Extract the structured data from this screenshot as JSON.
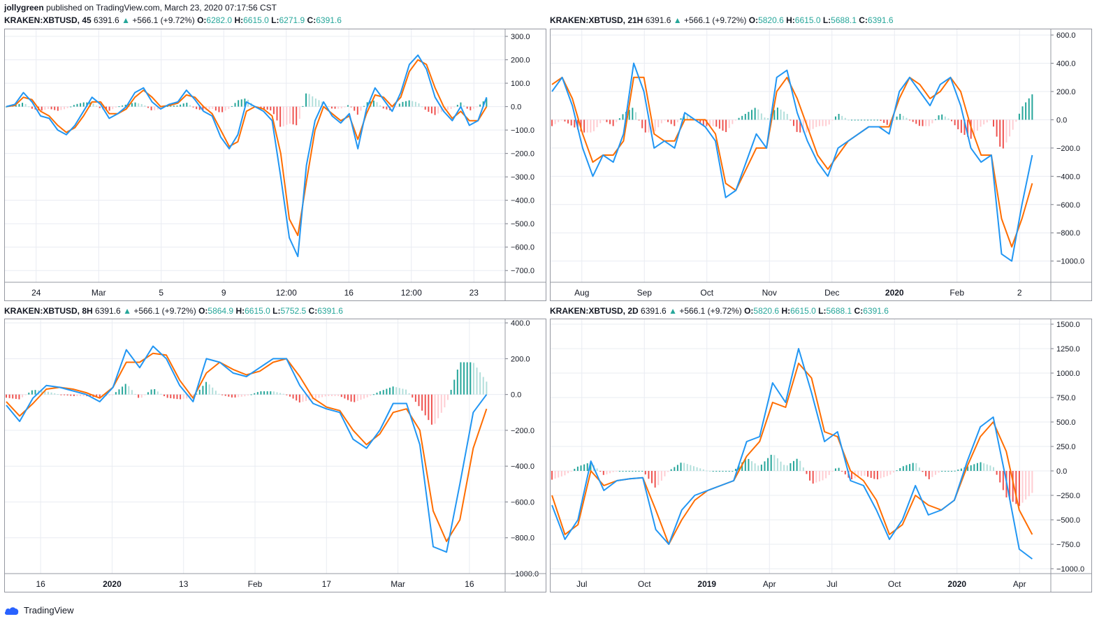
{
  "header": {
    "author": "jollygreen",
    "published": "published on TradingView.com, March 23, 2020 07:17:56 CST"
  },
  "footer": {
    "brand": "TradingView",
    "logo_icon": "tradingview-cloud-icon"
  },
  "colors": {
    "macd": "#2196f3",
    "signal": "#ff6d00",
    "hist_up_strong": "#26a69a",
    "hist_up_weak": "#b2dfdb",
    "hist_down_strong": "#ef5350",
    "hist_down_weak": "#ffcdd2",
    "grid": "#e9ecf2",
    "up_text": "#26a69a"
  },
  "panels": [
    {
      "id": "tl",
      "symbol": "KRAKEN:XBTUSD, 45",
      "price": "6391.6",
      "arrow": "▲",
      "change": "+566.1 (+9.72%)",
      "o": "6282.0",
      "h": "6615.0",
      "l": "6271.9",
      "c": "6391.6",
      "y_ticks": [
        "300.0",
        "200.0",
        "100.0",
        "0.0",
        "−100.0",
        "−200.0",
        "−300.0",
        "−400.0",
        "−500.0",
        "−600.0",
        "−700.0"
      ],
      "x_ticks": [
        "24",
        "Mar",
        "5",
        "9",
        "12:00",
        "16",
        "12:00",
        "23"
      ],
      "x_bold": []
    },
    {
      "id": "tr",
      "symbol": "KRAKEN:XBTUSD, 21H",
      "price": "6391.6",
      "arrow": "▲",
      "change": "+566.1 (+9.72%)",
      "o": "5820.6",
      "h": "6615.0",
      "l": "5688.1",
      "c": "6391.6",
      "y_ticks": [
        "600.0",
        "400.0",
        "200.0",
        "0.0",
        "−200.0",
        "−400.0",
        "−600.0",
        "−800.0",
        "−1000.0"
      ],
      "x_ticks": [
        "Aug",
        "Sep",
        "Oct",
        "Nov",
        "Dec",
        "2020",
        "Feb",
        "2"
      ],
      "x_bold": [
        "2020"
      ]
    },
    {
      "id": "bl",
      "symbol": "KRAKEN:XBTUSD, 8H",
      "price": "6391.6",
      "arrow": "▲",
      "change": "+566.1 (+9.72%)",
      "o": "5864.9",
      "h": "6615.0",
      "l": "5752.5",
      "c": "6391.6",
      "y_ticks": [
        "400.0",
        "200.0",
        "0.0",
        "−200.0",
        "−400.0",
        "−600.0",
        "−800.0",
        "−1000.0"
      ],
      "x_ticks": [
        "16",
        "2020",
        "13",
        "Feb",
        "17",
        "Mar",
        "16"
      ],
      "x_bold": [
        "2020"
      ]
    },
    {
      "id": "br",
      "symbol": "KRAKEN:XBTUSD, 2D",
      "price": "6391.6",
      "arrow": "▲",
      "change": "+566.1 (+9.72%)",
      "o": "5820.6",
      "h": "6615.0",
      "l": "5688.1",
      "c": "6391.6",
      "y_ticks": [
        "1500.0",
        "1250.0",
        "1000.0",
        "750.0",
        "500.0",
        "250.0",
        "0.0",
        "−250.0",
        "−500.0",
        "−750.0",
        "−1000.0"
      ],
      "x_ticks": [
        "Jul",
        "Oct",
        "2019",
        "Apr",
        "Jul",
        "Oct",
        "2020",
        "Apr"
      ],
      "x_bold": [
        "2019",
        "2020"
      ]
    }
  ],
  "chart_data": [
    {
      "type": "line",
      "title": "KRAKEN:XBTUSD, 45",
      "ylim": [
        -750,
        330
      ],
      "x_ticks": [
        "24",
        "Mar",
        "5",
        "9",
        "12:00",
        "16",
        "12:00",
        "23"
      ],
      "series": [
        {
          "values": [
            0,
            10,
            60,
            20,
            -40,
            -50,
            -100,
            -120,
            -80,
            -20,
            40,
            10,
            -50,
            -30,
            0,
            60,
            80,
            20,
            -10,
            10,
            20,
            70,
            30,
            -20,
            -40,
            -130,
            -180,
            -120,
            20,
            0,
            -20,
            -60,
            -300,
            -560,
            -640,
            -250,
            -60,
            20,
            -40,
            -70,
            -30,
            -180,
            -10,
            80,
            30,
            -20,
            60,
            180,
            220,
            160,
            40,
            -20,
            -60,
            0,
            -80,
            -60,
            40
          ]
        },
        {
          "values": [
            0,
            5,
            40,
            30,
            -20,
            -40,
            -80,
            -110,
            -90,
            -40,
            20,
            20,
            -30,
            -30,
            -10,
            40,
            70,
            40,
            0,
            5,
            15,
            50,
            40,
            0,
            -30,
            -100,
            -170,
            -150,
            -20,
            0,
            -10,
            -40,
            -200,
            -480,
            -550,
            -320,
            -100,
            0,
            -30,
            -60,
            -40,
            -140,
            -30,
            50,
            40,
            0,
            40,
            150,
            200,
            180,
            80,
            0,
            -50,
            -20,
            -60,
            -60,
            0
          ]
        }
      ]
    },
    {
      "type": "line",
      "title": "KRAKEN:XBTUSD, 21H",
      "ylim": [
        -1150,
        640
      ],
      "x_ticks": [
        "Aug",
        "Sep",
        "Oct",
        "Nov",
        "Dec",
        "2020",
        "Feb",
        "2"
      ],
      "series": [
        {
          "values": [
            200,
            300,
            100,
            -200,
            -400,
            -250,
            -300,
            -100,
            400,
            200,
            -200,
            -150,
            -200,
            50,
            0,
            -50,
            -150,
            -550,
            -500,
            -300,
            -100,
            -200,
            300,
            350,
            50,
            -150,
            -300,
            -400,
            -200,
            -150,
            -100,
            -50,
            -50,
            -100,
            200,
            300,
            200,
            100,
            250,
            300,
            100,
            -200,
            -300,
            -250,
            -950,
            -1000,
            -600,
            -250
          ]
        },
        {
          "values": [
            250,
            300,
            150,
            -100,
            -300,
            -250,
            -250,
            -150,
            300,
            300,
            -100,
            -150,
            -150,
            0,
            0,
            0,
            -100,
            -450,
            -500,
            -350,
            -200,
            -200,
            200,
            300,
            150,
            -50,
            -250,
            -350,
            -250,
            -150,
            -100,
            -50,
            -50,
            -50,
            150,
            300,
            250,
            150,
            200,
            300,
            200,
            -50,
            -250,
            -250,
            -700,
            -900,
            -700,
            -450
          ]
        }
      ]
    },
    {
      "type": "line",
      "title": "KRAKEN:XBTUSD, 8H",
      "ylim": [
        -1000,
        420
      ],
      "x_ticks": [
        "16",
        "2020",
        "13",
        "Feb",
        "17",
        "Mar",
        "16"
      ],
      "series": [
        {
          "values": [
            -60,
            -150,
            -20,
            50,
            40,
            20,
            0,
            -40,
            40,
            250,
            150,
            270,
            200,
            50,
            -40,
            200,
            180,
            120,
            100,
            150,
            200,
            200,
            50,
            -50,
            -80,
            -100,
            -250,
            -300,
            -200,
            -50,
            -50,
            -280,
            -850,
            -880,
            -500,
            -100,
            0
          ]
        },
        {
          "values": [
            -40,
            -120,
            -50,
            30,
            40,
            30,
            10,
            -20,
            40,
            180,
            180,
            230,
            220,
            80,
            -20,
            120,
            180,
            140,
            110,
            130,
            180,
            200,
            100,
            -20,
            -70,
            -90,
            -200,
            -280,
            -220,
            -100,
            -80,
            -200,
            -650,
            -820,
            -700,
            -300,
            -80
          ]
        }
      ]
    },
    {
      "type": "line",
      "title": "KRAKEN:XBTUSD, 2D",
      "ylim": [
        -1050,
        1550
      ],
      "x_ticks": [
        "Jul",
        "Oct",
        "2019",
        "Apr",
        "Jul",
        "Oct",
        "2020",
        "Apr"
      ],
      "series": [
        {
          "values": [
            -350,
            -700,
            -500,
            100,
            -200,
            -100,
            -80,
            -70,
            -600,
            -750,
            -400,
            -250,
            -200,
            -150,
            -100,
            300,
            350,
            900,
            700,
            1250,
            800,
            300,
            400,
            -100,
            -150,
            -400,
            -700,
            -500,
            -150,
            -450,
            -400,
            -300,
            100,
            450,
            550,
            -100,
            -800,
            -900
          ]
        },
        {
          "values": [
            -250,
            -650,
            -550,
            0,
            -150,
            -100,
            -80,
            -70,
            -400,
            -750,
            -500,
            -300,
            -200,
            -150,
            -100,
            150,
            300,
            700,
            650,
            1100,
            950,
            400,
            350,
            0,
            -100,
            -300,
            -650,
            -550,
            -250,
            -350,
            -400,
            -300,
            50,
            350,
            500,
            200,
            -400,
            -650
          ]
        }
      ]
    }
  ]
}
